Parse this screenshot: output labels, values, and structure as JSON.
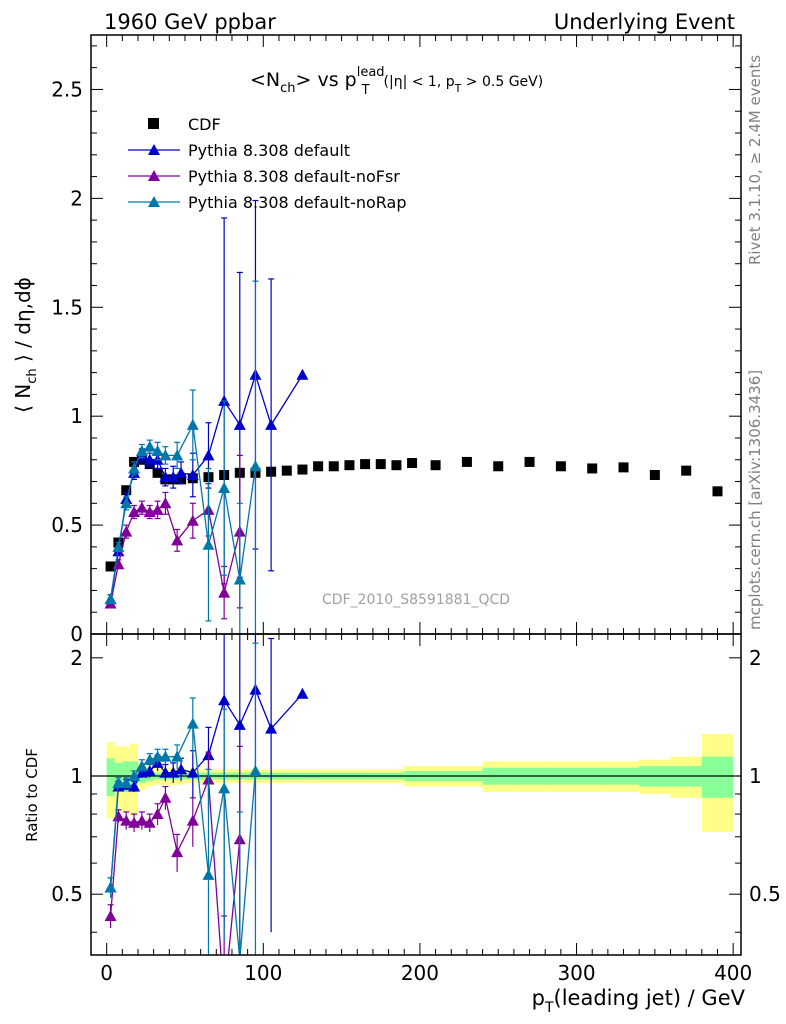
{
  "header": {
    "left": "1960 GeV ppbar",
    "right": "Underlying Event"
  },
  "side_text": {
    "rivet": "Rivet 3.1.10, ≥ 2.4M events",
    "source": "mcplots.cern.ch [arXiv:1306.3436]"
  },
  "watermark": "CDF_2010_S8591881_QCD",
  "title": {
    "main": "<N",
    "main_sub": "ch",
    "vs": "> vs p",
    "sup": "lead",
    "sub": "T",
    "cuts_a": "(|η| < 1, p",
    "cuts_sub": "T",
    "cuts_b": " > 0.5 GeV)"
  },
  "chart_data": {
    "type": "scatter",
    "xlabel": "p_T(leading jet) / GeV",
    "ylabel_top": "⟨ N_ch ⟩ / dη,dϕ",
    "ylabel_ratio": "Ratio to CDF",
    "xlim": [
      -10,
      405
    ],
    "ylim_top": [
      0,
      2.75
    ],
    "ylim_ratio": [
      0.35,
      2.3
    ],
    "x_ticks": [
      "0",
      "100",
      "200",
      "300",
      "400"
    ],
    "y_ticks_top": [
      "0",
      "0.5",
      "1",
      "1.5",
      "2",
      "2.5"
    ],
    "y_ticks_ratio": [
      "0.5",
      "1",
      "2"
    ],
    "legend": [
      "CDF",
      "Pythia 8.308 default",
      "Pythia 8.308 default-noFsr",
      "Pythia 8.308 default-noRap"
    ],
    "colors": {
      "CDF": "#000000",
      "default": "#0000cc",
      "noFsr": "#800099",
      "noRap": "#0077aa",
      "band_inner": "#88ff99",
      "band_outer": "#ffff88"
    },
    "cdf": {
      "x": [
        2.5,
        7.5,
        12.5,
        17.5,
        22.5,
        27.5,
        32.5,
        37.5,
        42.5,
        47.5,
        55,
        65,
        75,
        85,
        95,
        105,
        115,
        125,
        135,
        145,
        155,
        165,
        175,
        185,
        195,
        210,
        230,
        250,
        270,
        290,
        310,
        330,
        350,
        370,
        390
      ],
      "y": [
        0.31,
        0.42,
        0.66,
        0.79,
        0.8,
        0.78,
        0.74,
        0.71,
        0.71,
        0.71,
        0.715,
        0.72,
        0.73,
        0.74,
        0.74,
        0.745,
        0.75,
        0.755,
        0.77,
        0.77,
        0.775,
        0.78,
        0.78,
        0.775,
        0.785,
        0.775,
        0.79,
        0.77,
        0.79,
        0.77,
        0.76,
        0.765,
        0.73,
        0.75,
        0.655
      ],
      "xerr": [
        2.5,
        2.5,
        2.5,
        2.5,
        2.5,
        2.5,
        2.5,
        2.5,
        2.5,
        2.5,
        5,
        5,
        5,
        5,
        5,
        5,
        5,
        5,
        5,
        5,
        5,
        5,
        5,
        5,
        5,
        10,
        10,
        10,
        10,
        10,
        10,
        10,
        10,
        10,
        10
      ],
      "band_inner": [
        0.11,
        0.08,
        0.09,
        0.09,
        0.04,
        0.03,
        0.02,
        0.02,
        0.02,
        0.02,
        0.02,
        0.02,
        0.02,
        0.02,
        0.02,
        0.02,
        0.02,
        0.02,
        0.02,
        0.02,
        0.02,
        0.02,
        0.02,
        0.02,
        0.03,
        0.03,
        0.03,
        0.05,
        0.05,
        0.05,
        0.05,
        0.05,
        0.06,
        0.06,
        0.12
      ],
      "band_outer": [
        0.22,
        0.19,
        0.19,
        0.21,
        0.08,
        0.06,
        0.05,
        0.05,
        0.05,
        0.05,
        0.04,
        0.04,
        0.04,
        0.04,
        0.04,
        0.04,
        0.04,
        0.04,
        0.04,
        0.04,
        0.04,
        0.04,
        0.04,
        0.04,
        0.06,
        0.06,
        0.06,
        0.09,
        0.09,
        0.09,
        0.09,
        0.09,
        0.1,
        0.12,
        0.28
      ]
    },
    "series": [
      {
        "name": "Pythia 8.308 default",
        "x": [
          2.5,
          7.5,
          12.5,
          17.5,
          22.5,
          27.5,
          32.5,
          37.5,
          42.5,
          47.5,
          55,
          65,
          75,
          85,
          95,
          105,
          125
        ],
        "y": [
          0.16,
          0.38,
          0.62,
          0.74,
          0.82,
          0.8,
          0.8,
          0.72,
          0.72,
          0.74,
          0.73,
          0.82,
          1.07,
          0.96,
          1.19,
          0.96,
          1.19
        ],
        "err": [
          0.02,
          0.02,
          0.03,
          0.03,
          0.03,
          0.03,
          0.04,
          0.04,
          0.05,
          0.05,
          0.1,
          0.15,
          0.84,
          0.7,
          0.8,
          0.67,
          0.0
        ],
        "ratio": [
          0.52,
          0.94,
          0.95,
          0.94,
          1.02,
          1.03,
          1.08,
          1.02,
          1.02,
          1.04,
          1.02,
          1.13,
          1.56,
          1.35,
          1.66,
          1.32,
          1.62
        ],
        "ratio_err": [
          0.03,
          0.03,
          0.03,
          0.03,
          0.03,
          0.04,
          0.05,
          0.05,
          0.06,
          0.07,
          0.14,
          0.2,
          1.15,
          0.95,
          1.08,
          0.92,
          0.0
        ]
      },
      {
        "name": "Pythia 8.308 default-noFsr",
        "x": [
          2.5,
          7.5,
          12.5,
          17.5,
          22.5,
          27.5,
          32.5,
          37.5,
          45,
          55,
          65,
          75,
          85
        ],
        "y": [
          0.14,
          0.32,
          0.47,
          0.56,
          0.58,
          0.56,
          0.57,
          0.6,
          0.43,
          0.52,
          0.57,
          0.19,
          0.47
        ],
        "err": [
          0.02,
          0.02,
          0.03,
          0.03,
          0.03,
          0.03,
          0.04,
          0.05,
          0.05,
          0.08,
          0.12,
          0.12,
          0.35
        ],
        "ratio": [
          0.44,
          0.79,
          0.77,
          0.76,
          0.77,
          0.76,
          0.8,
          0.88,
          0.64,
          0.77,
          0.98,
          0.27,
          0.69
        ],
        "ratio_err": [
          0.03,
          0.03,
          0.04,
          0.04,
          0.04,
          0.04,
          0.05,
          0.06,
          0.07,
          0.11,
          0.17,
          0.17,
          0.5
        ]
      },
      {
        "name": "Pythia 8.308 default-noRap",
        "x": [
          2.5,
          7.5,
          12.5,
          17.5,
          22.5,
          27.5,
          32.5,
          37.5,
          45,
          55,
          65,
          75,
          85,
          95
        ],
        "y": [
          0.16,
          0.4,
          0.6,
          0.76,
          0.84,
          0.86,
          0.84,
          0.82,
          0.82,
          0.96,
          0.41,
          0.67,
          0.25,
          0.77
        ],
        "err": [
          0.02,
          0.02,
          0.03,
          0.03,
          0.03,
          0.03,
          0.04,
          0.04,
          0.06,
          0.16,
          0.35,
          0.4,
          0.35,
          0.85
        ],
        "ratio": [
          0.52,
          0.96,
          0.96,
          1.0,
          1.06,
          1.1,
          1.12,
          1.12,
          1.12,
          1.36,
          0.56,
          0.93,
          0.34,
          1.03
        ],
        "ratio_err": [
          0.03,
          0.03,
          0.03,
          0.03,
          0.04,
          0.04,
          0.05,
          0.05,
          0.08,
          0.22,
          0.48,
          0.55,
          0.47,
          1.15
        ]
      }
    ]
  }
}
